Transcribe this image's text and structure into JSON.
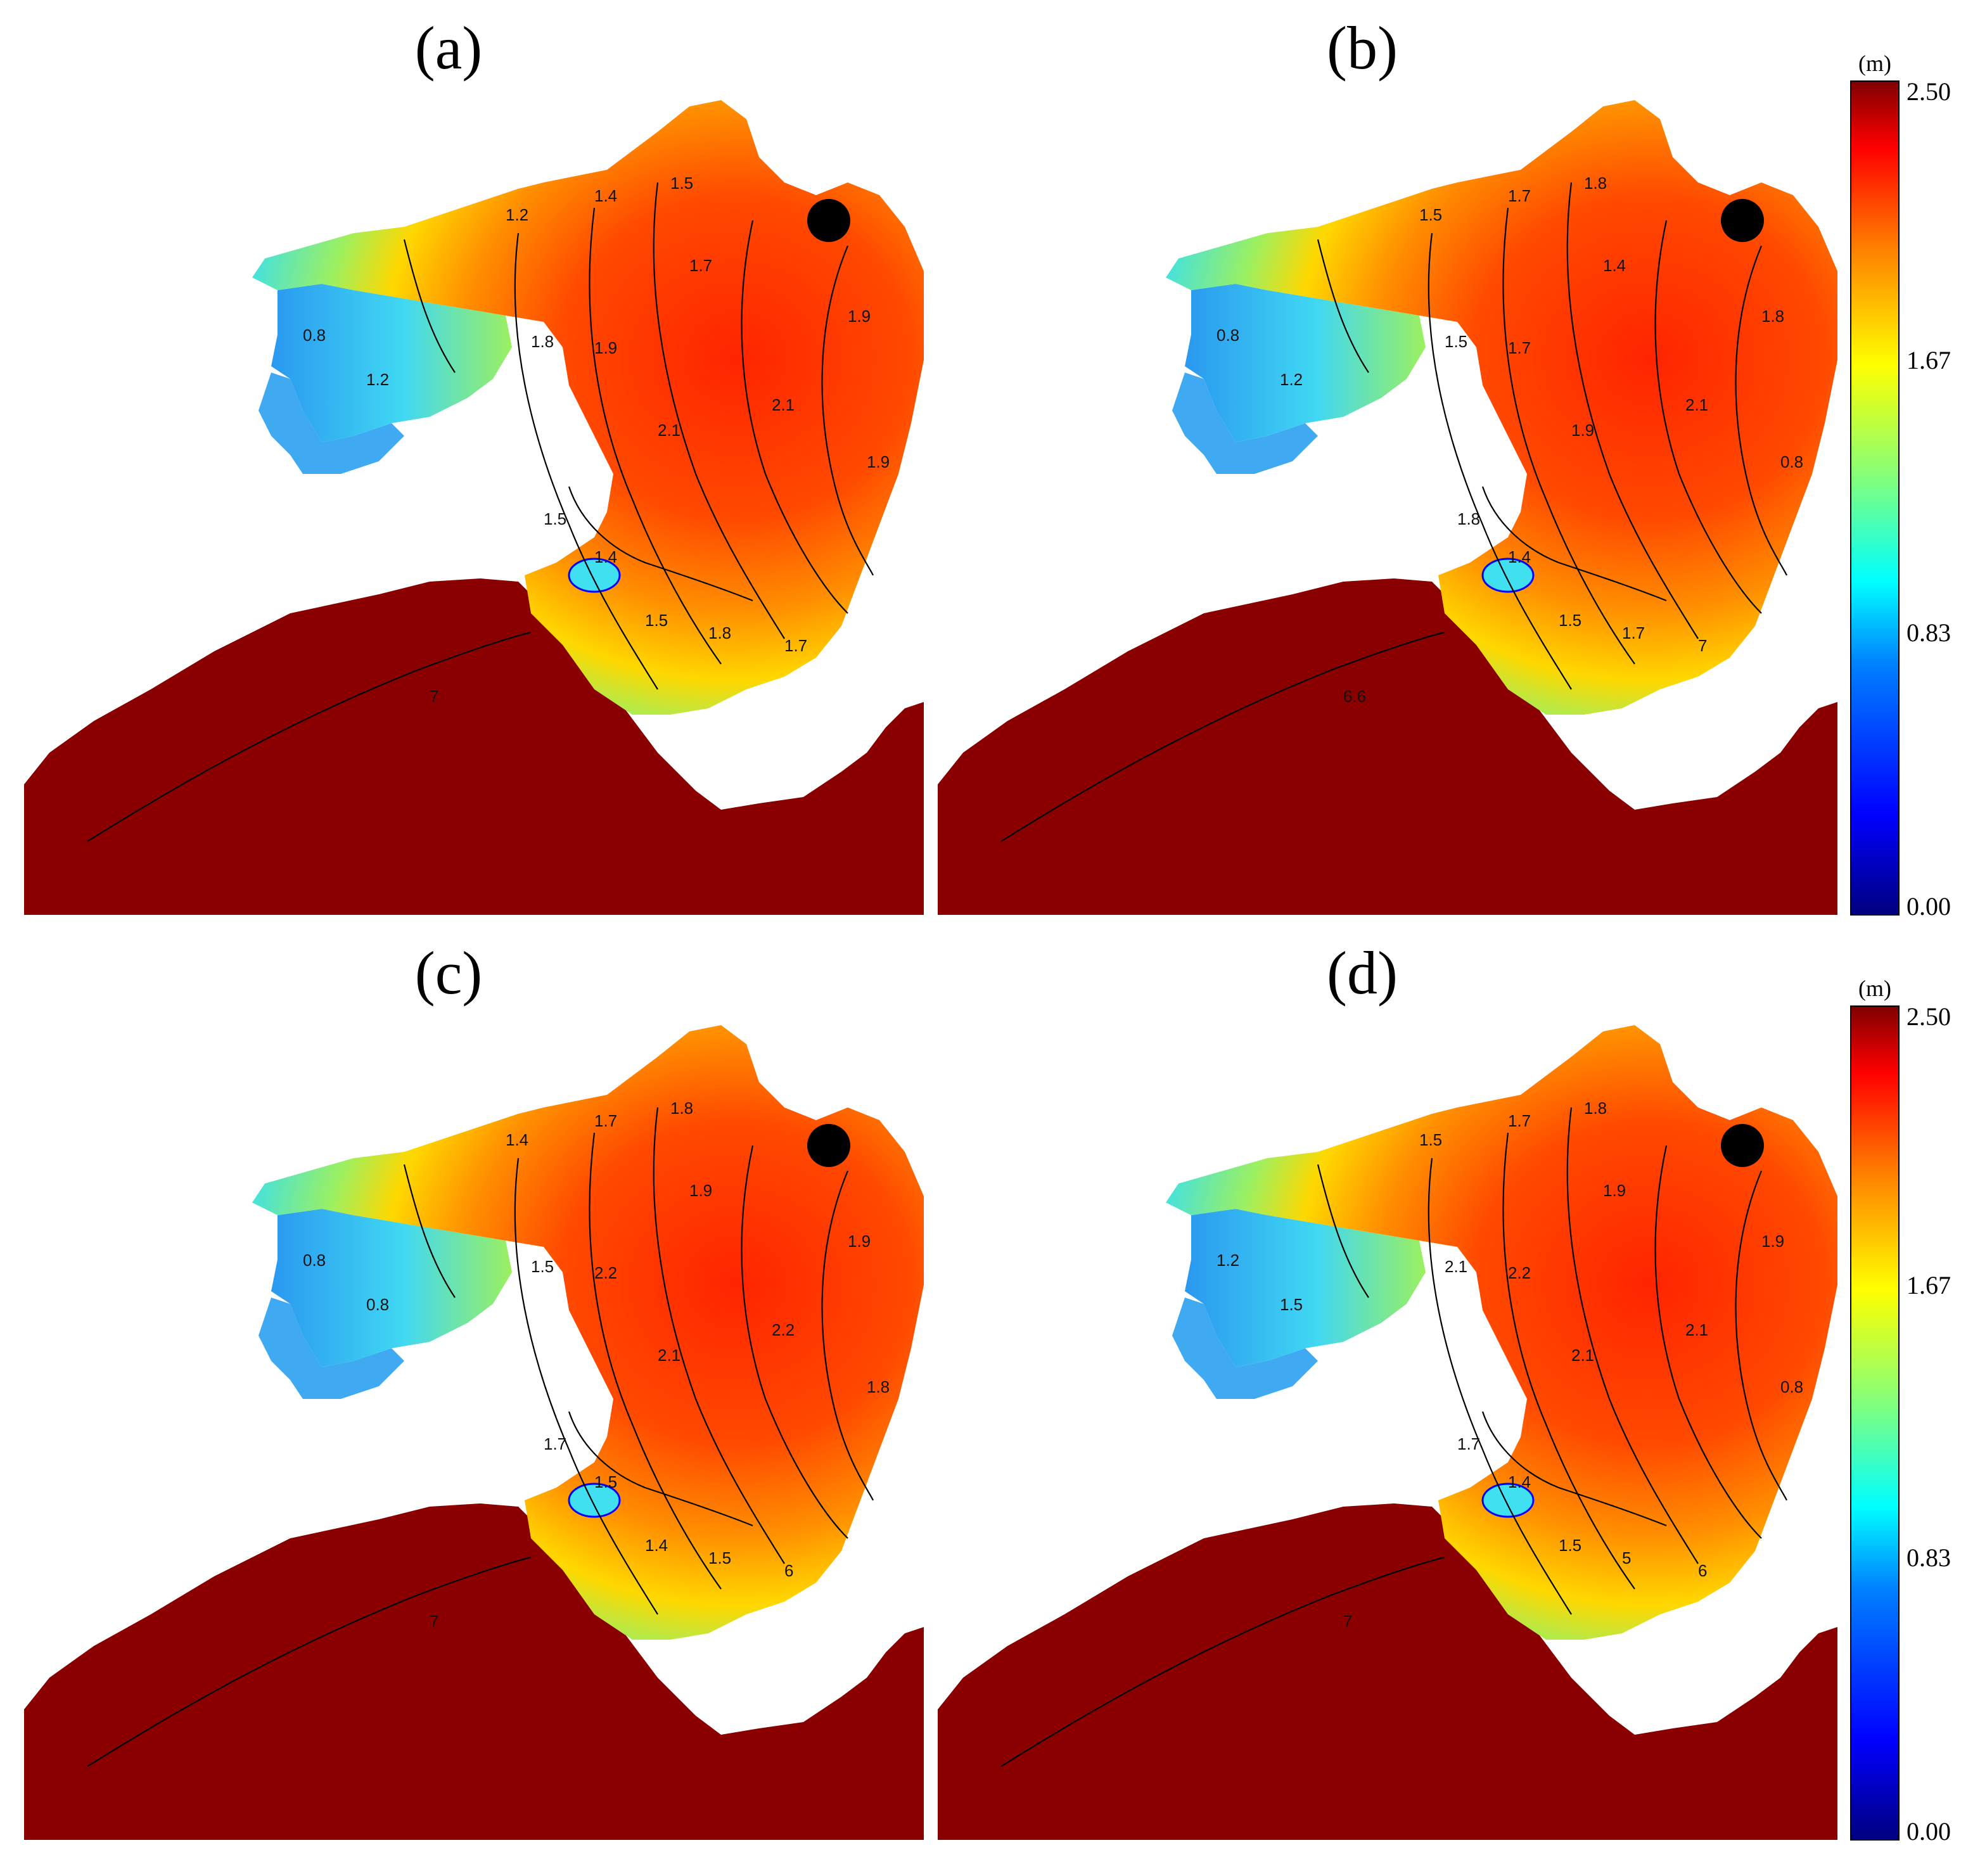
{
  "panels": [
    {
      "label": "(a)",
      "labels": [
        "1.2",
        "1.4",
        "1.5",
        "1.7",
        "1.8",
        "1.9",
        "2.1",
        "2.1",
        "1.9",
        "1.9",
        "0.8",
        "1.2",
        "1.5",
        "1.4",
        "1.5",
        "1.8",
        "1.7",
        "7"
      ]
    },
    {
      "label": "(b)",
      "labels": [
        "1.5",
        "1.7",
        "1.8",
        "1.4",
        "1.5",
        "1.7",
        "1.9",
        "2.1",
        "1.8",
        "0.8",
        "0.8",
        "1.2",
        "1.8",
        "1.4",
        "1.5",
        "1.7",
        "7",
        "6.6"
      ]
    },
    {
      "label": "(c)",
      "labels": [
        "1.4",
        "1.7",
        "1.8",
        "1.9",
        "1.5",
        "2.2",
        "2.1",
        "2.2",
        "1.9",
        "1.8",
        "0.8",
        "0.8",
        "1.7",
        "1.5",
        "1.4",
        "1.5",
        "6",
        "7"
      ]
    },
    {
      "label": "(d)",
      "labels": [
        "1.5",
        "1.7",
        "1.8",
        "1.9",
        "2.1",
        "2.2",
        "2.1",
        "2.1",
        "1.9",
        "0.8",
        "1.2",
        "1.5",
        "1.7",
        "1.4",
        "1.5",
        "5",
        "6",
        "7"
      ]
    }
  ],
  "colorbars": [
    {
      "unit": "(m)",
      "ticks": [
        "2.50",
        "1.67",
        "0.83",
        "0.00"
      ]
    },
    {
      "unit": "(m)",
      "ticks": [
        "2.50",
        "1.67",
        "0.83",
        "0.00"
      ]
    }
  ],
  "colors": {
    "sea": "#8a0000",
    "marker": "#000000",
    "colormap": [
      "#00007f",
      "#0000ff",
      "#007fff",
      "#00ffff",
      "#7fff7f",
      "#ffff00",
      "#ff7f00",
      "#ff0000",
      "#7f0000"
    ]
  },
  "scale": {
    "min": 0.0,
    "max": 2.5
  }
}
